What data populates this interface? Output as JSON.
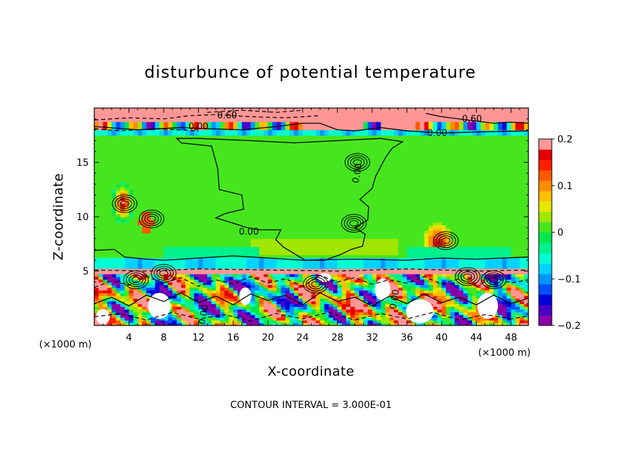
{
  "chart_data": {
    "type": "heatmap",
    "title": "disturbunce of potential temperature",
    "xlabel": "X-coordinate",
    "ylabel": "Z-coordinate",
    "x_unit": "(×1000 m)",
    "y_unit": "(×1000 m)",
    "xlim": [
      0,
      50
    ],
    "ylim": [
      0,
      20
    ],
    "x_ticks": [
      "4",
      "8",
      "12",
      "16",
      "20",
      "24",
      "28",
      "32",
      "36",
      "40",
      "44",
      "48"
    ],
    "x_tick_values": [
      4,
      8,
      12,
      16,
      20,
      24,
      28,
      32,
      36,
      40,
      44,
      48
    ],
    "y_ticks": [
      "5",
      "10",
      "15"
    ],
    "y_tick_values": [
      5,
      10,
      15
    ],
    "colorbar": {
      "ticks": [
        "0.2",
        "0.1",
        "0",
        "−0.1",
        "−0.2"
      ],
      "tick_values": [
        0.2,
        0.1,
        0,
        -0.1,
        -0.2
      ],
      "range": [
        -0.2,
        0.2
      ],
      "colors": [
        "#8b00a8",
        "#4b00c8",
        "#0000d8",
        "#0050ff",
        "#0096ff",
        "#00d2ff",
        "#00ffd2",
        "#00f08c",
        "#00e650",
        "#46e61e",
        "#a0e600",
        "#e6e600",
        "#ffbe00",
        "#ff8c00",
        "#ff5a00",
        "#ff1e00",
        "#e60000",
        "#ff9696"
      ]
    },
    "contour_labels": [
      {
        "text": "0.60",
        "x": 15.3,
        "y": 19.3
      },
      {
        "text": "0.60",
        "x": 43.5,
        "y": 19.0
      },
      {
        "text": "0.00",
        "x": 12.0,
        "y": 18.3
      },
      {
        "text": "0.00",
        "x": 39.5,
        "y": 17.7
      },
      {
        "text": "0.00",
        "x": 30.3,
        "y": 14.0
      },
      {
        "text": "0.00",
        "x": 17.8,
        "y": 8.6
      },
      {
        "text": "0.00",
        "x": 34.6,
        "y": 2.4
      },
      {
        "text": "0.00",
        "x": 12.6,
        "y": 1.0
      }
    ],
    "grid": false,
    "legend": "colorbar-right"
  },
  "footer": {
    "contour_interval": "CONTOUR INTERVAL = 3.000E-01"
  }
}
